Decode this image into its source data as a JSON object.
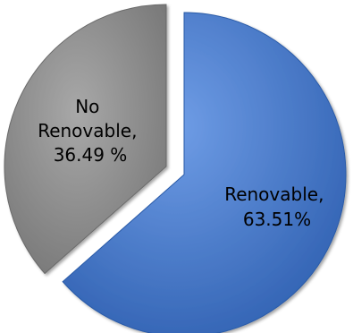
{
  "chart_data": {
    "type": "pie",
    "title": "",
    "slices": [
      {
        "name": "Renovable",
        "value": 63.51,
        "color": "#3F74C8",
        "exploded": false,
        "label_lines": [
          "Renovable,",
          "63.51%"
        ]
      },
      {
        "name": "No Renovable",
        "value": 36.49,
        "color": "#8E8E8E",
        "exploded": true,
        "label_lines": [
          "No",
          "Renovable,",
          "36.49 %"
        ]
      }
    ]
  }
}
